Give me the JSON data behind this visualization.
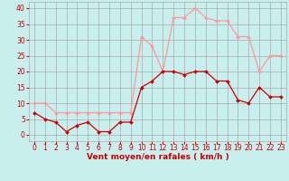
{
  "hours": [
    0,
    1,
    2,
    3,
    4,
    5,
    6,
    7,
    8,
    9,
    10,
    11,
    12,
    13,
    14,
    15,
    16,
    17,
    18,
    19,
    20,
    21,
    22,
    23
  ],
  "wind_mean": [
    7,
    5,
    4,
    1,
    3,
    4,
    1,
    1,
    4,
    4,
    15,
    17,
    20,
    20,
    19,
    20,
    20,
    17,
    17,
    11,
    10,
    15,
    12,
    12
  ],
  "wind_gust": [
    10,
    10,
    7,
    7,
    7,
    7,
    7,
    7,
    7,
    7,
    31,
    28,
    20,
    37,
    37,
    40,
    37,
    36,
    36,
    31,
    31,
    20,
    25,
    25
  ],
  "xlabel": "Vent moyen/en rafales ( km/h )",
  "ylim": [
    -2,
    42
  ],
  "xlim": [
    -0.5,
    23.5
  ],
  "yticks": [
    0,
    5,
    10,
    15,
    20,
    25,
    30,
    35,
    40
  ],
  "xticks": [
    0,
    1,
    2,
    3,
    4,
    5,
    6,
    7,
    8,
    9,
    10,
    11,
    12,
    13,
    14,
    15,
    16,
    17,
    18,
    19,
    20,
    21,
    22,
    23
  ],
  "bg_color": "#c8eeed",
  "grid_color": "#aaaaaa",
  "mean_color": "#cc0000",
  "gust_color": "#ff9999",
  "xlabel_color": "#cc0000",
  "tick_color": "#cc0000",
  "xlabel_fontsize": 6.5,
  "tick_fontsize": 5.5
}
